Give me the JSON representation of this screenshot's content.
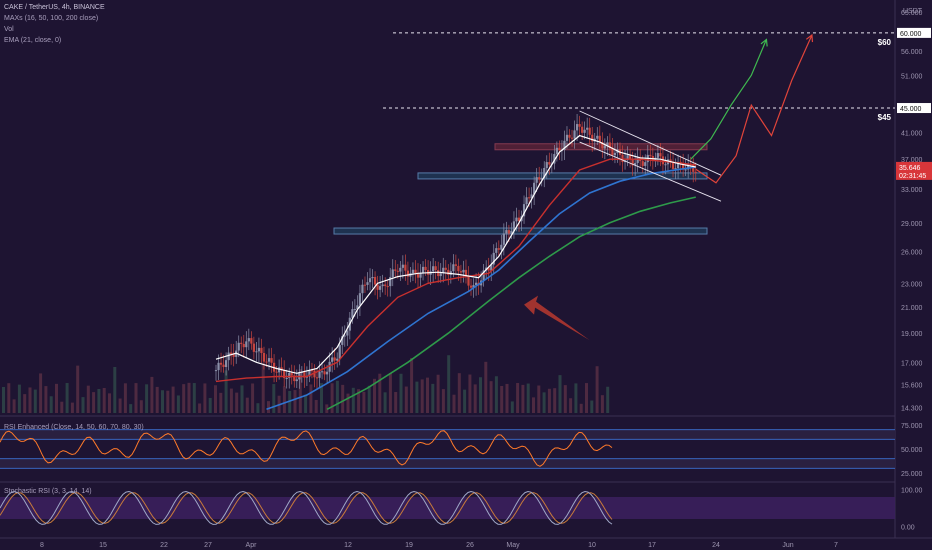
{
  "chart_data": {
    "type": "candlestick",
    "symbol_line": "CAKE / TetherUS, 4h, BINANCE",
    "indicators": [
      "MAXs (16, 50, 100, 200 close)",
      "Vol",
      "EMA (21, close, 0)"
    ],
    "price_axis": {
      "unit_label": "USDT",
      "ticks": [
        "65.000",
        "60.000",
        "56.000",
        "51.000",
        "45.000",
        "41.000",
        "37.000",
        "33.000",
        "29.000",
        "26.000",
        "23.000",
        "21.000",
        "19.000",
        "17.000",
        "15.600",
        "14.300"
      ],
      "range": [
        14.0,
        66.0
      ],
      "scale": "log"
    },
    "dates": [
      "8",
      "15",
      "22",
      "27",
      "Apr",
      "12",
      "19",
      "26",
      "May",
      "10",
      "17",
      "24",
      "Jun",
      "7"
    ],
    "current_price": "35.646",
    "countdown": "02:31:45",
    "targets": [
      {
        "label": "$60",
        "value": 60.0,
        "axis_label": "60.000"
      },
      {
        "label": "$45",
        "value": 45.0,
        "axis_label": "45.000"
      }
    ],
    "zones": [
      38.8,
      34.7,
      28.1
    ],
    "price_path": [
      [
        0,
        16.5
      ],
      [
        3,
        17.5
      ],
      [
        6,
        18.5
      ],
      [
        9,
        17.5
      ],
      [
        12,
        16.5
      ],
      [
        15,
        16.0
      ],
      [
        18,
        16.3
      ],
      [
        21,
        16.2
      ],
      [
        24,
        17.5
      ],
      [
        27,
        20.5
      ],
      [
        30,
        23.5
      ],
      [
        33,
        22.5
      ],
      [
        36,
        24.5
      ],
      [
        39,
        23.8
      ],
      [
        42,
        24.2
      ],
      [
        45,
        24.0
      ],
      [
        48,
        24.5
      ],
      [
        51,
        22.5
      ],
      [
        54,
        24.5
      ],
      [
        57,
        27.5
      ],
      [
        60,
        29.5
      ],
      [
        63,
        33.5
      ],
      [
        66,
        36.5
      ],
      [
        69,
        39.5
      ],
      [
        72,
        42.0
      ],
      [
        75,
        40.0
      ],
      [
        78,
        38.5
      ],
      [
        81,
        37.0
      ],
      [
        84,
        36.5
      ],
      [
        87,
        37.5
      ],
      [
        90,
        36.2
      ],
      [
        93,
        36.0
      ],
      [
        95,
        35.6
      ]
    ],
    "ma_fast": [
      [
        0,
        17.2
      ],
      [
        4,
        17.6
      ],
      [
        8,
        17.0
      ],
      [
        12,
        16.6
      ],
      [
        16,
        16.3
      ],
      [
        20,
        16.6
      ],
      [
        24,
        18.0
      ],
      [
        28,
        20.8
      ],
      [
        32,
        23.0
      ],
      [
        36,
        23.6
      ],
      [
        40,
        23.9
      ],
      [
        44,
        24.0
      ],
      [
        48,
        23.8
      ],
      [
        52,
        23.5
      ],
      [
        56,
        25.5
      ],
      [
        60,
        29.0
      ],
      [
        64,
        33.5
      ],
      [
        68,
        38.0
      ],
      [
        72,
        40.5
      ],
      [
        76,
        39.5
      ],
      [
        80,
        38.0
      ],
      [
        84,
        37.2
      ],
      [
        88,
        37.0
      ],
      [
        92,
        36.3
      ],
      [
        95,
        35.9
      ]
    ],
    "ma_mid": [
      [
        0,
        15.8
      ],
      [
        6,
        16.0
      ],
      [
        12,
        16.1
      ],
      [
        18,
        16.1
      ],
      [
        24,
        17.0
      ],
      [
        30,
        19.5
      ],
      [
        36,
        21.8
      ],
      [
        42,
        23.0
      ],
      [
        48,
        23.5
      ],
      [
        54,
        23.9
      ],
      [
        60,
        26.5
      ],
      [
        66,
        31.0
      ],
      [
        72,
        35.5
      ],
      [
        78,
        37.0
      ],
      [
        84,
        37.0
      ],
      [
        90,
        36.6
      ],
      [
        95,
        36.2
      ]
    ],
    "ma_slow": [
      [
        10,
        14.2
      ],
      [
        18,
        15.0
      ],
      [
        26,
        16.4
      ],
      [
        34,
        18.4
      ],
      [
        42,
        20.5
      ],
      [
        50,
        22.3
      ],
      [
        56,
        24.2
      ],
      [
        62,
        27.0
      ],
      [
        68,
        30.0
      ],
      [
        74,
        32.5
      ],
      [
        80,
        34.0
      ],
      [
        86,
        35.0
      ],
      [
        92,
        35.6
      ],
      [
        95,
        35.9
      ]
    ],
    "ma_long": [
      [
        22,
        14.2
      ],
      [
        30,
        15.4
      ],
      [
        38,
        17.0
      ],
      [
        46,
        19.0
      ],
      [
        54,
        21.5
      ],
      [
        60,
        23.5
      ],
      [
        66,
        25.5
      ],
      [
        72,
        27.5
      ],
      [
        78,
        29.0
      ],
      [
        84,
        30.3
      ],
      [
        90,
        31.3
      ],
      [
        95,
        32.0
      ]
    ],
    "channel": {
      "upper": [
        [
          72,
          44.5
        ],
        [
          100,
          34.8
        ]
      ],
      "lower": [
        [
          72,
          39.5
        ],
        [
          100,
          31.5
        ]
      ]
    },
    "green_arrow": [
      [
        94,
        37.0
      ],
      [
        98,
        40.0
      ],
      [
        102,
        45.5
      ],
      [
        106,
        51.0
      ],
      [
        109,
        58.5
      ]
    ],
    "red_arrow": [
      [
        95,
        35.6
      ],
      [
        99,
        33.8
      ],
      [
        103,
        37.5
      ],
      [
        106,
        45.5
      ],
      [
        110,
        40.5
      ],
      [
        114,
        50.0
      ],
      [
        118,
        59.5
      ]
    ],
    "thick_arrow": {
      "from": [
        74,
        18.5
      ],
      "to": [
        61,
        21.2
      ]
    },
    "rsi": {
      "label": "RSI Enhanced (Close, 14, 50, 60, 70, 80, 30)",
      "ticks": [
        "75.000",
        "50.000",
        "25.000"
      ],
      "range": [
        20,
        80
      ],
      "levels": [
        70,
        60,
        40,
        30
      ]
    },
    "stoch": {
      "label": "Stochastic RSI (3, 3, 14, 14)",
      "ticks": [
        "100.00",
        "0.00"
      ],
      "range": [
        -10,
        110
      ]
    }
  }
}
